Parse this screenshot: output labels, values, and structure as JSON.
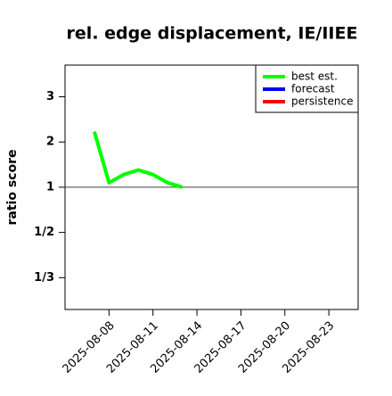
{
  "chart_data": {
    "type": "line",
    "title": "rel. edge displacement, IE/IIEE",
    "ylabel": "ratio score",
    "x": [
      "2025-08-07",
      "2025-08-08",
      "2025-08-09",
      "2025-08-10",
      "2025-08-11",
      "2025-08-12",
      "2025-08-13"
    ],
    "series": [
      {
        "name": "best est.",
        "color": "#00ff00",
        "values": [
          2.23,
          1.1,
          1.28,
          1.38,
          1.28,
          1.1,
          1.0
        ]
      },
      {
        "name": "forecast",
        "color": "#0000ff",
        "values": [
          null,
          null,
          null,
          null,
          null,
          null,
          null
        ]
      },
      {
        "name": "persistence",
        "color": "#ff0000",
        "values": [
          null,
          null,
          null,
          null,
          null,
          null,
          null
        ]
      }
    ],
    "xlim": [
      "2025-08-05",
      "2025-08-25"
    ],
    "xticks": [
      "2025-08-08",
      "2025-08-11",
      "2025-08-14",
      "2025-08-17",
      "2025-08-20",
      "2025-08-23"
    ],
    "highlight_tick": "2025-08-14",
    "highlight_color": "#228b22",
    "yscale": "symmetric-ratio",
    "ylim": [
      0.27,
      3.7
    ],
    "yticks": [
      {
        "value": 0.3333,
        "label": "1/3"
      },
      {
        "value": 0.5,
        "label": "1/2"
      },
      1,
      2,
      3
    ],
    "reference_line": 1,
    "legend": "top-right"
  }
}
